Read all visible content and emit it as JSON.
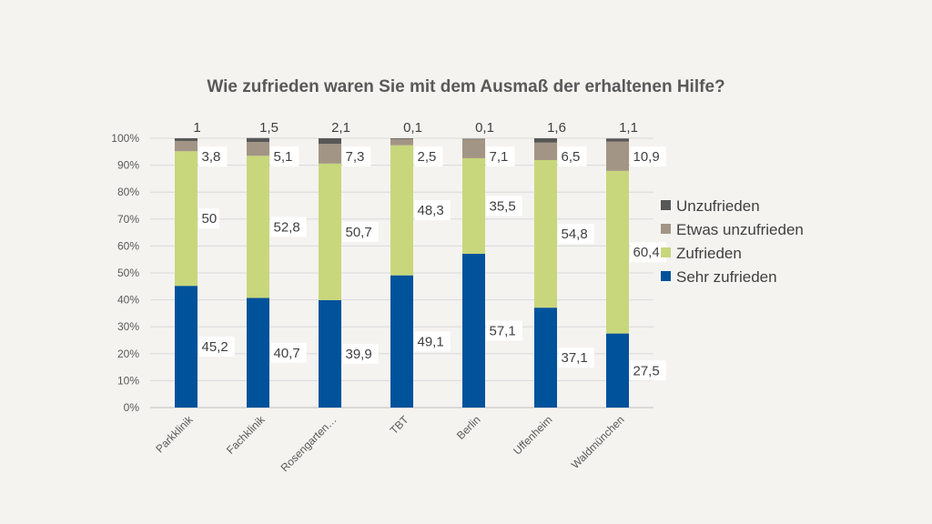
{
  "chart_data": {
    "type": "bar",
    "stacked": true,
    "title": "Wie zufrieden waren Sie mit dem Ausmaß der erhaltenen Hilfe?",
    "categories": [
      "Parkklinik",
      "Fachklinik",
      "Rosengarten…",
      "TBT",
      "Berlin",
      "Uffenheim",
      "Waldmünchen"
    ],
    "series": [
      {
        "name": "Sehr zufrieden",
        "color": "#00529b",
        "values": [
          45.2,
          40.7,
          39.9,
          49.1,
          57.1,
          37.1,
          27.5
        ],
        "labels": [
          "45,2",
          "40,7",
          "39,9",
          "49,1",
          "57,1",
          "37,1",
          "27,5"
        ]
      },
      {
        "name": "Zufrieden",
        "color": "#c8d77c",
        "values": [
          50,
          52.8,
          50.7,
          48.3,
          35.5,
          54.8,
          60.4
        ],
        "labels": [
          "50",
          "52,8",
          "50,7",
          "48,3",
          "35,5",
          "54,8",
          "60,4"
        ]
      },
      {
        "name": "Etwas unzufrieden",
        "color": "#a39585",
        "values": [
          3.8,
          5.1,
          7.3,
          2.5,
          7.1,
          6.5,
          10.9
        ],
        "labels": [
          "3,8",
          "5,1",
          "7,3",
          "2,5",
          "7,1",
          "6,5",
          "10,9"
        ]
      },
      {
        "name": "Unzufrieden",
        "color": "#575757",
        "values": [
          1,
          1.5,
          2.1,
          0.1,
          0.1,
          1.6,
          1.1
        ],
        "labels": [
          "1",
          "1,5",
          "2,1",
          "0,1",
          "0,1",
          "1,6",
          "1,1"
        ]
      }
    ],
    "ylim": [
      0,
      100
    ],
    "yticks": [
      "0%",
      "10%",
      "20%",
      "30%",
      "40%",
      "50%",
      "60%",
      "70%",
      "80%",
      "90%",
      "100%"
    ],
    "legend_position": "right",
    "legend_order": [
      "Unzufrieden",
      "Etwas unzufrieden",
      "Zufrieden",
      "Sehr zufrieden"
    ],
    "grid": true
  }
}
